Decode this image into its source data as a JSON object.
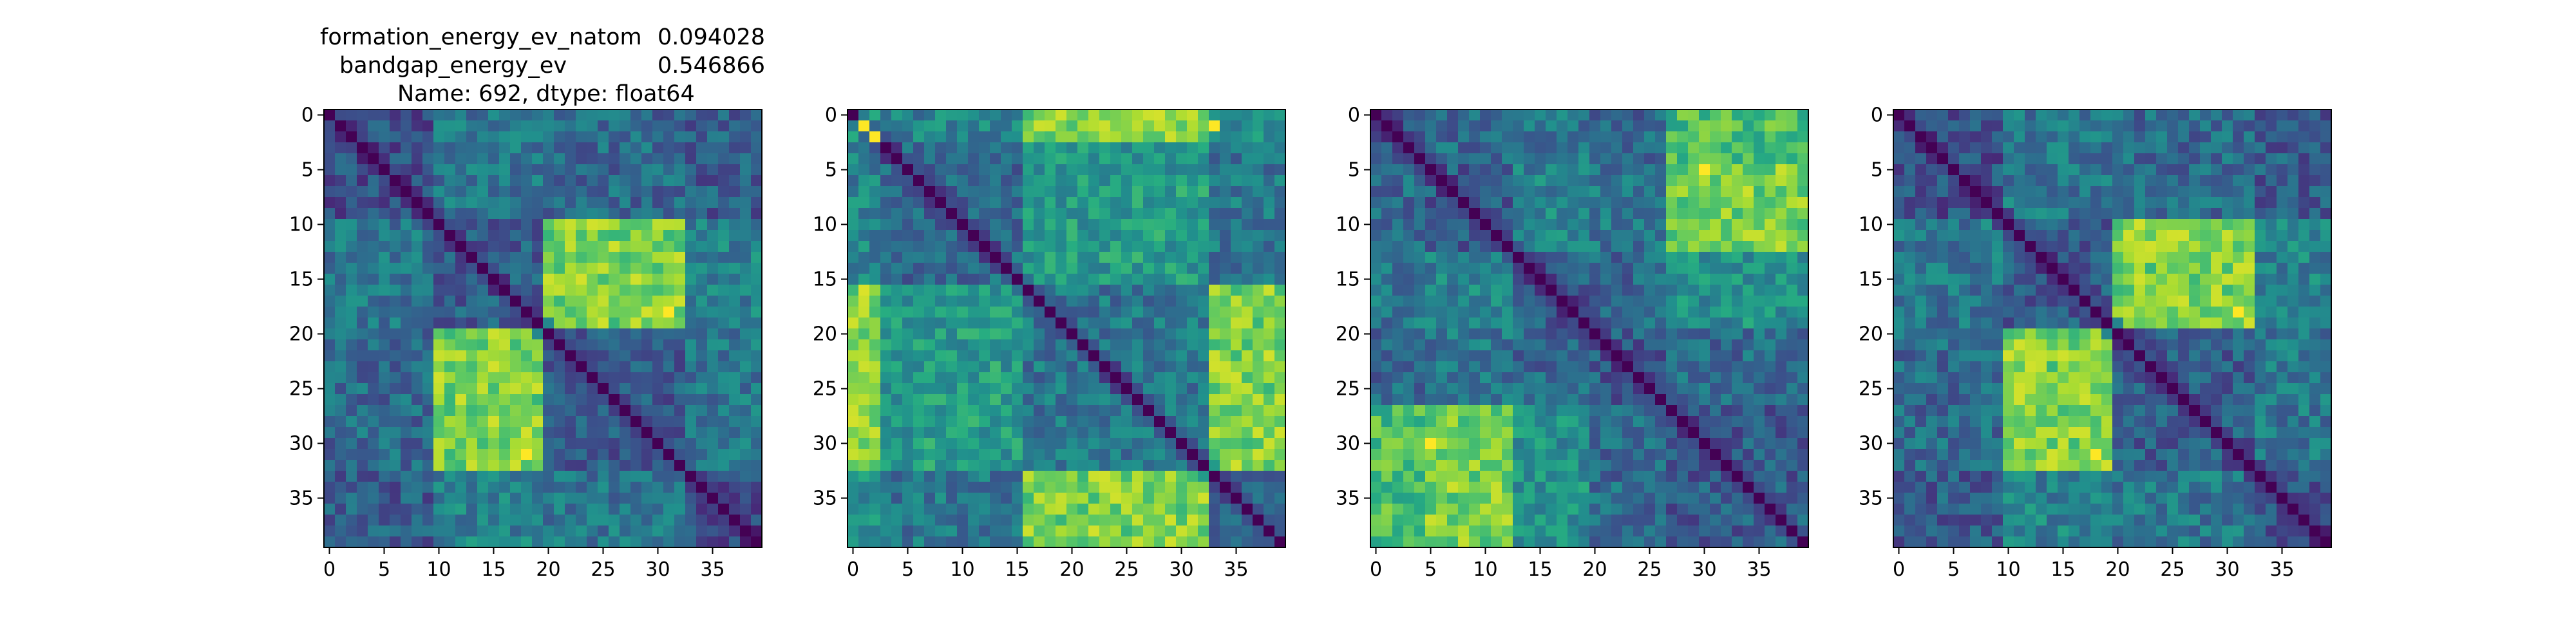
{
  "title": {
    "row1_name": "formation_energy_ev_natom",
    "row1_value": "0.094028",
    "row2_name": "bandgap_energy_ev",
    "row2_value": "0.546866",
    "row3": "Name: 692, dtype: float64"
  },
  "colormap": "viridis",
  "chart_data": [
    {
      "type": "heatmap",
      "n": 40,
      "xticks": [
        0,
        5,
        10,
        15,
        20,
        25,
        30,
        35
      ],
      "yticks": [
        0,
        5,
        10,
        15,
        20,
        25,
        30,
        35
      ],
      "xlim": [
        -0.5,
        39.5
      ],
      "ylim": [
        39.5,
        -0.5
      ],
      "groups": [
        [
          0,
          10
        ],
        [
          10,
          20
        ],
        [
          20,
          33
        ],
        [
          33,
          40
        ]
      ],
      "block_values": [
        [
          0.25,
          0.4,
          0.35,
          0.3
        ],
        [
          0.4,
          0.3,
          0.8,
          0.45
        ],
        [
          0.35,
          0.8,
          0.3,
          0.4
        ],
        [
          0.3,
          0.45,
          0.4,
          0.25
        ]
      ],
      "hotspots": [
        {
          "row": 18,
          "col": 31,
          "value": 1.0
        },
        {
          "row": 31,
          "col": 18,
          "value": 1.0
        }
      ],
      "diagonal": 0
    },
    {
      "type": "heatmap",
      "n": 40,
      "xticks": [
        0,
        5,
        10,
        15,
        20,
        25,
        30,
        35
      ],
      "yticks": [
        0,
        5,
        10,
        15,
        20,
        25,
        30,
        35
      ],
      "xlim": [
        -0.5,
        39.5
      ],
      "ylim": [
        39.5,
        -0.5
      ],
      "groups": [
        [
          0,
          3
        ],
        [
          3,
          16
        ],
        [
          16,
          33
        ],
        [
          33,
          40
        ]
      ],
      "block_values": [
        [
          0.6,
          0.45,
          0.8,
          0.5
        ],
        [
          0.45,
          0.35,
          0.55,
          0.4
        ],
        [
          0.8,
          0.55,
          0.4,
          0.8
        ],
        [
          0.5,
          0.4,
          0.8,
          0.35
        ]
      ],
      "hotspots": [
        {
          "row": 1,
          "col": 1,
          "value": 1.0
        },
        {
          "row": 2,
          "col": 2,
          "value": 1.0
        },
        {
          "row": 1,
          "col": 33,
          "value": 1.0
        },
        {
          "row": 16,
          "col": 1,
          "value": 0.95
        }
      ],
      "diagonal": 0
    },
    {
      "type": "heatmap",
      "n": 40,
      "xticks": [
        0,
        5,
        10,
        15,
        20,
        25,
        30,
        35
      ],
      "yticks": [
        0,
        5,
        10,
        15,
        20,
        25,
        30,
        35
      ],
      "xlim": [
        -0.5,
        39.5
      ],
      "ylim": [
        39.5,
        -0.5
      ],
      "groups": [
        [
          0,
          5
        ],
        [
          5,
          13
        ],
        [
          13,
          20
        ],
        [
          20,
          27
        ],
        [
          27,
          40
        ]
      ],
      "block_values": [
        [
          0.3,
          0.35,
          0.4,
          0.35,
          0.7
        ],
        [
          0.35,
          0.3,
          0.45,
          0.4,
          0.8
        ],
        [
          0.4,
          0.45,
          0.3,
          0.35,
          0.5
        ],
        [
          0.35,
          0.4,
          0.35,
          0.3,
          0.35
        ],
        [
          0.7,
          0.8,
          0.5,
          0.35,
          0.3
        ]
      ],
      "hotspots": [
        {
          "row": 5,
          "col": 30,
          "value": 1.0
        },
        {
          "row": 30,
          "col": 5,
          "value": 1.0
        }
      ],
      "diagonal": 0
    },
    {
      "type": "heatmap",
      "n": 40,
      "xticks": [
        0,
        5,
        10,
        15,
        20,
        25,
        30,
        35
      ],
      "yticks": [
        0,
        5,
        10,
        15,
        20,
        25,
        30,
        35
      ],
      "xlim": [
        -0.5,
        39.5
      ],
      "ylim": [
        39.5,
        -0.5
      ],
      "groups": [
        [
          0,
          10
        ],
        [
          10,
          20
        ],
        [
          20,
          33
        ],
        [
          33,
          40
        ]
      ],
      "block_values": [
        [
          0.25,
          0.4,
          0.35,
          0.3
        ],
        [
          0.4,
          0.3,
          0.8,
          0.45
        ],
        [
          0.35,
          0.8,
          0.3,
          0.4
        ],
        [
          0.3,
          0.45,
          0.4,
          0.25
        ]
      ],
      "hotspots": [
        {
          "row": 18,
          "col": 31,
          "value": 1.0
        },
        {
          "row": 31,
          "col": 18,
          "value": 1.0
        }
      ],
      "diagonal": 0
    }
  ]
}
